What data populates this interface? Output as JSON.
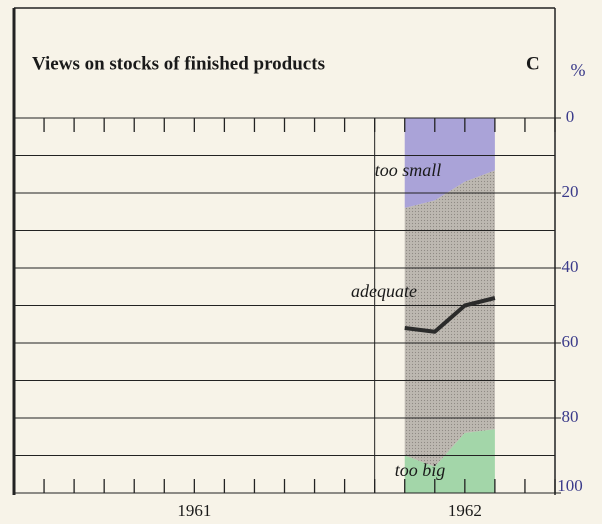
{
  "chart_data": {
    "type": "stacked_area",
    "title": "Views on stocks of finished products",
    "panel_label": "C",
    "y_label": "%",
    "x": [
      13,
      14,
      15,
      16
    ],
    "xlim": [
      0,
      18
    ],
    "xticks": [
      0,
      1,
      2,
      3,
      4,
      5,
      6,
      7,
      8,
      9,
      10,
      11,
      12,
      13,
      14,
      15,
      16,
      17,
      18
    ],
    "year_labels": [
      "1961",
      "1962"
    ],
    "ylim": [
      0,
      100
    ],
    "yticks": [
      0,
      20,
      40,
      60,
      80,
      100
    ],
    "y_inverted": true,
    "grid_step": 10,
    "series": [
      {
        "name": "too small",
        "color": "#aaa3d8",
        "values": [
          24,
          22,
          17,
          14
        ]
      },
      {
        "name": "adequate",
        "color": "#b9b4ad",
        "values": [
          66,
          71,
          67,
          69
        ]
      },
      {
        "name": "too big",
        "color": "#a3d6a9",
        "values": [
          10,
          7,
          16,
          17
        ]
      }
    ],
    "line": {
      "color": "#2b2b2b",
      "values": [
        56,
        57,
        50,
        48
      ]
    }
  }
}
